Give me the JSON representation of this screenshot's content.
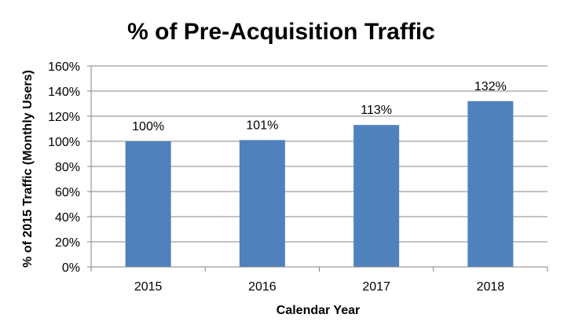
{
  "chart_data": {
    "type": "bar",
    "title": "% of Pre-Acquisition Traffic",
    "xlabel": "Calendar Year",
    "ylabel": "% of 2015 Traffic (Monthly Users)",
    "categories": [
      "2015",
      "2016",
      "2017",
      "2018"
    ],
    "series": [
      {
        "values": [
          100,
          101,
          113,
          132
        ],
        "data_labels": [
          "100%",
          "101%",
          "113%",
          "132%"
        ]
      }
    ],
    "ylim": [
      0,
      160
    ],
    "yticks": [
      0,
      20,
      40,
      60,
      80,
      100,
      120,
      140,
      160
    ],
    "ytick_labels": [
      "0%",
      "20%",
      "40%",
      "60%",
      "80%",
      "100%",
      "120%",
      "140%",
      "160%"
    ],
    "grid": true,
    "legend": "none",
    "colors": {
      "bar": "#4F81BD",
      "grid": "#868686",
      "axis": "#868686",
      "text": "#000000"
    }
  }
}
